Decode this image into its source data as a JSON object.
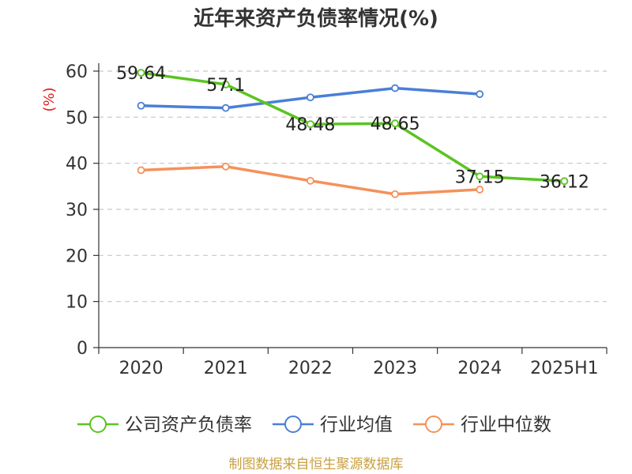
{
  "chart_data": {
    "type": "line",
    "title": "近年来资产负债率情况(%)",
    "ylabel": "(%)",
    "xlabel": "",
    "ylim": [
      0,
      60
    ],
    "yticks": [
      0,
      10,
      20,
      30,
      40,
      50,
      60
    ],
    "grid": "horizontal dashed",
    "legend_position": "bottom",
    "categories": [
      "2020",
      "2021",
      "2022",
      "2023",
      "2024",
      "2025H1"
    ],
    "series": [
      {
        "name": "公司资产负债率",
        "color": "#5ac420",
        "values": [
          59.64,
          57.1,
          48.48,
          48.65,
          37.15,
          36.12
        ],
        "labels": [
          "59.64",
          "57.1",
          "48.48",
          "48.65",
          "37.15",
          "36.12"
        ]
      },
      {
        "name": "行业均值",
        "color": "#4a7fd6",
        "values": [
          52.5,
          52.0,
          54.3,
          56.3,
          55.0,
          null
        ]
      },
      {
        "name": "行业中位数",
        "color": "#f5915a",
        "values": [
          38.5,
          39.3,
          36.2,
          33.3,
          34.3,
          null
        ]
      }
    ],
    "source": "制图数据来自恒生聚源数据库"
  }
}
